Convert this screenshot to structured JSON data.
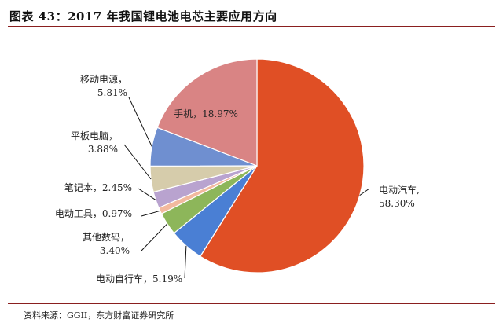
{
  "header": {
    "title": "图表 43：2017 年我国锂电池电芯主要应用方向"
  },
  "footer": {
    "source": "资料来源：GGII，东方财富证券研究所"
  },
  "chart_data": {
    "type": "pie",
    "title": "",
    "start_angle_deg": 0,
    "direction": "clockwise",
    "slices": [
      {
        "name": "电动汽车",
        "value": 58.3,
        "label_line1": "电动汽车,",
        "label_line2": "58.30%",
        "color": "#e04f25"
      },
      {
        "name": "电动自行车",
        "value": 5.19,
        "label_line1": "电动自行车，5.19%",
        "label_line2": "",
        "color": "#4a7fd4"
      },
      {
        "name": "其他数码",
        "value": 3.4,
        "label_line1": "其他数码，",
        "label_line2": "3.40%",
        "color": "#8db65a"
      },
      {
        "name": "电动工具",
        "value": 0.97,
        "label_line1": "电动工具，0.97%",
        "label_line2": "",
        "color": "#f3b99e"
      },
      {
        "name": "笔记本",
        "value": 2.45,
        "label_line1": "笔记本，2.45%",
        "label_line2": "",
        "color": "#b9a3cf"
      },
      {
        "name": "平板电脑",
        "value": 3.88,
        "label_line1": "平板电脑，",
        "label_line2": "3.88%",
        "color": "#d6ccab"
      },
      {
        "name": "移动电源",
        "value": 5.81,
        "label_line1": "移动电源，",
        "label_line2": "5.81%",
        "color": "#6f8fd0"
      },
      {
        "name": "手机",
        "value": 18.97,
        "label_line1": "手机，18.97%",
        "label_line2": "",
        "color": "#d98484"
      }
    ]
  }
}
